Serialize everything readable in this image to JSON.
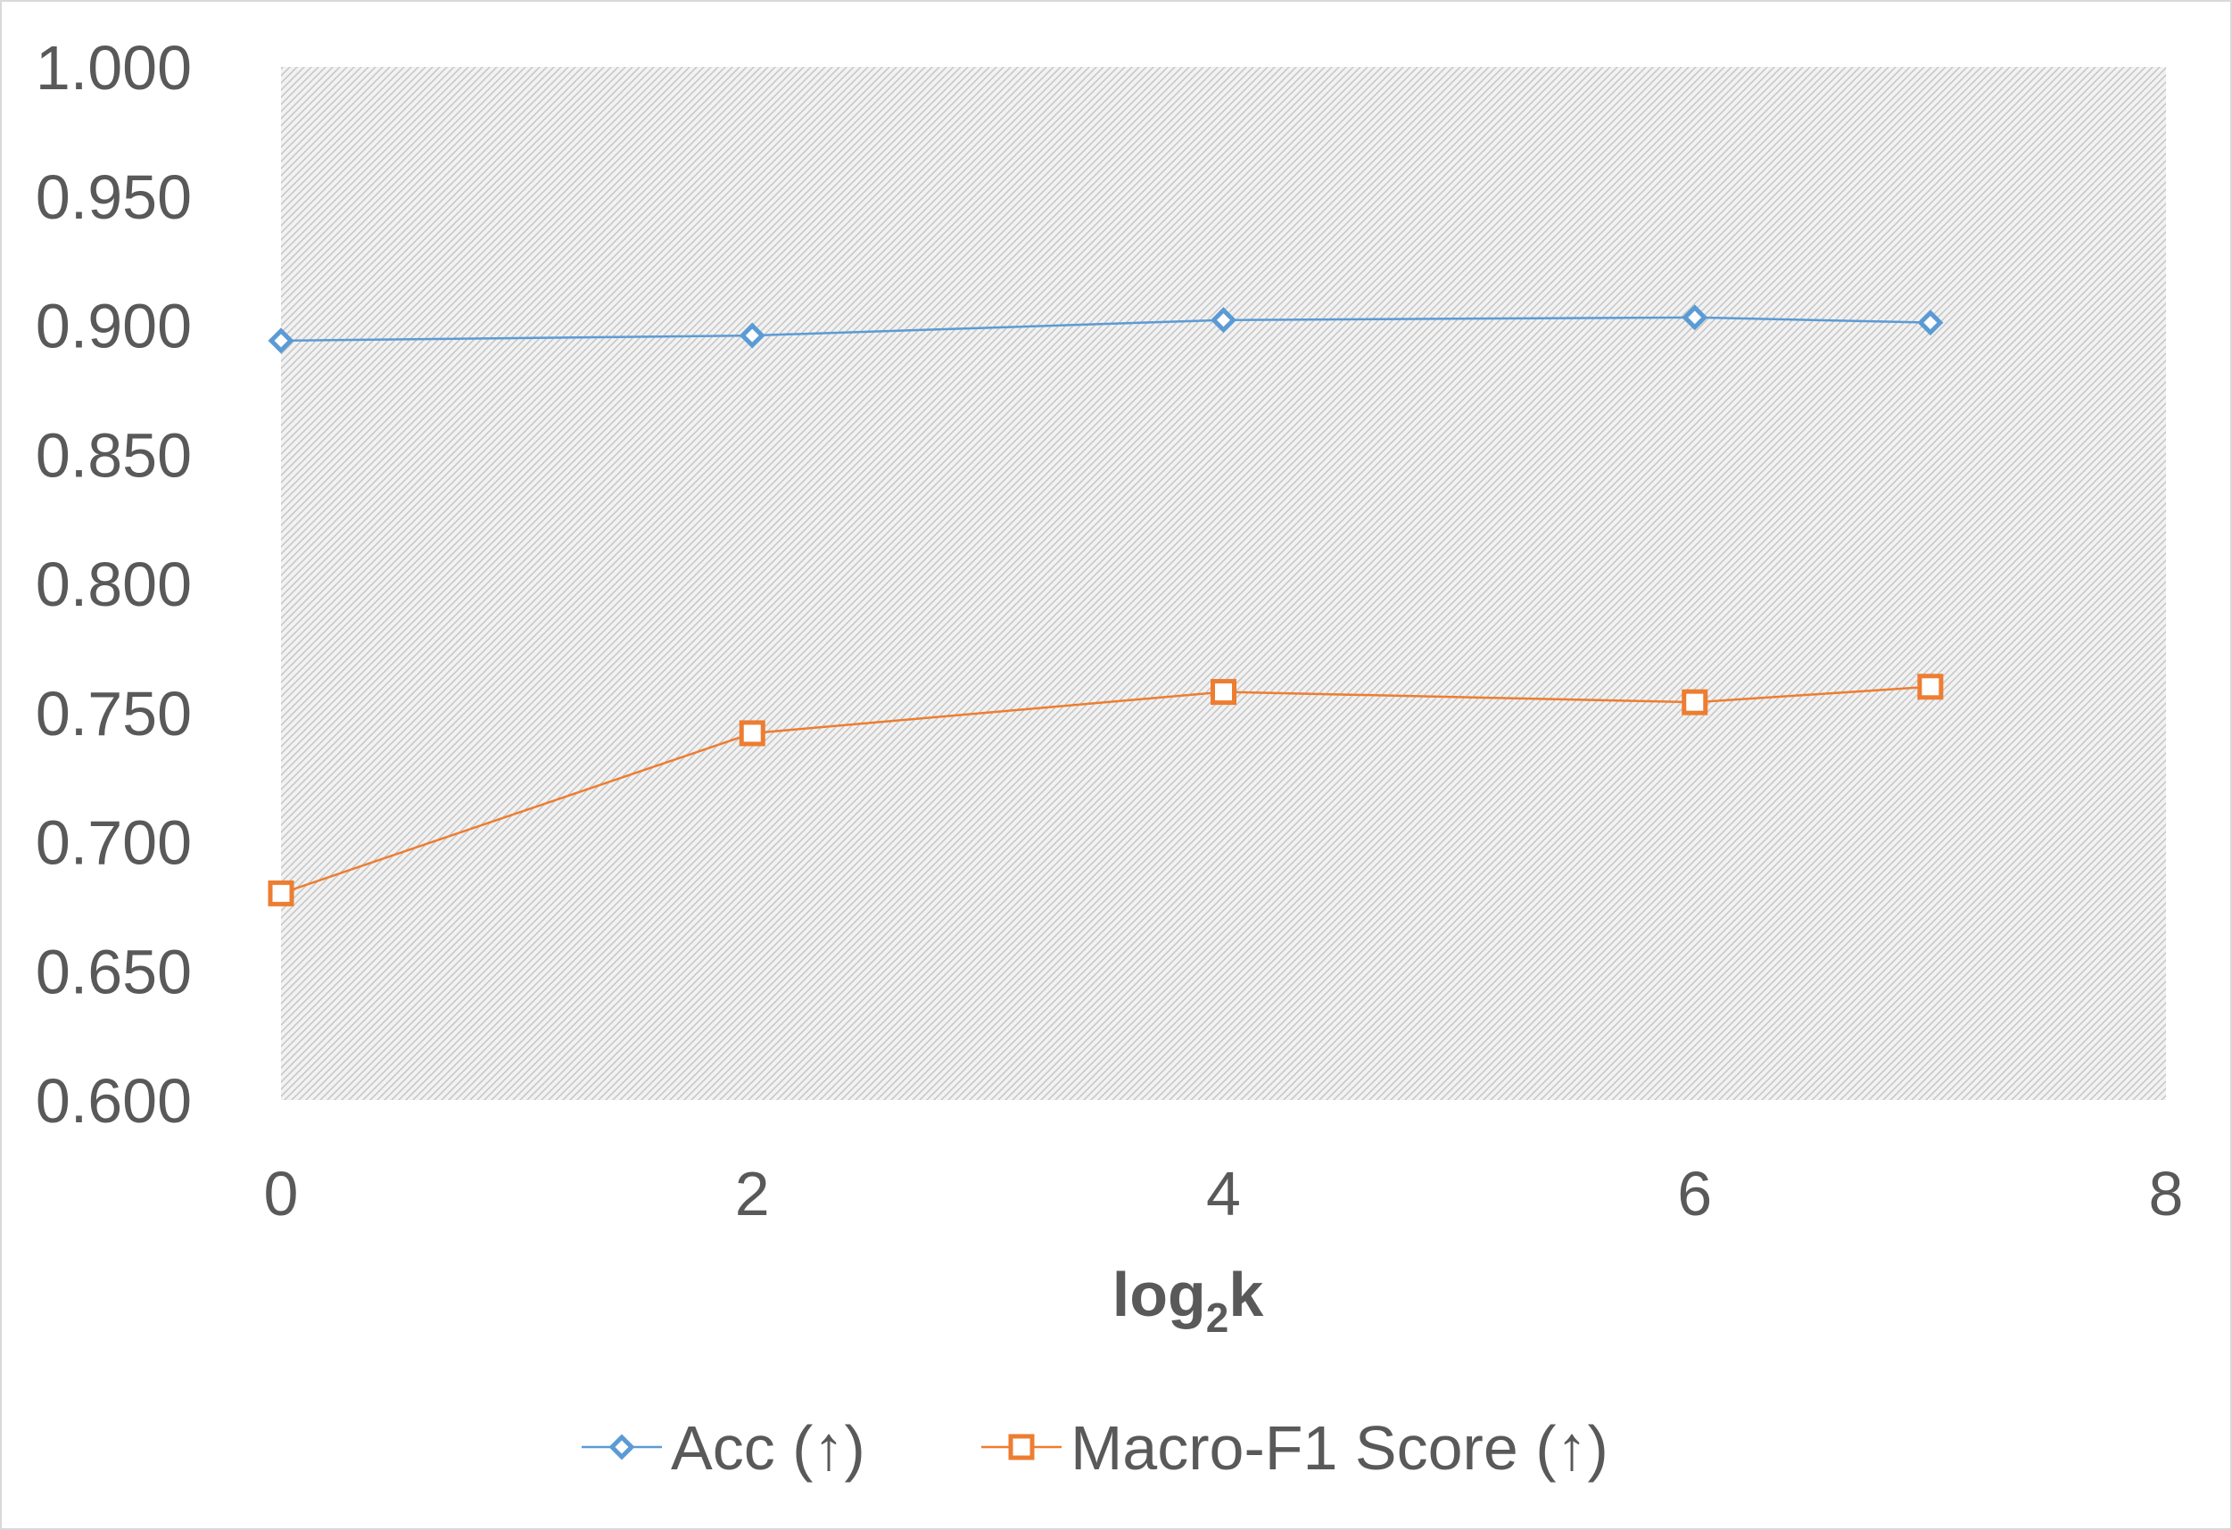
{
  "chart_data": {
    "type": "line",
    "xlabel": "log",
    "xlabel_sub": "2",
    "xlabel_suffix": "k",
    "xlim": [
      0,
      8
    ],
    "ylim": [
      0.6,
      1.0
    ],
    "x_ticks": [
      "0",
      "2",
      "4",
      "6",
      "8"
    ],
    "y_ticks": [
      "0.600",
      "0.650",
      "0.700",
      "0.750",
      "0.800",
      "0.850",
      "0.900",
      "0.950",
      "1.000"
    ],
    "grid": false,
    "plot_background": "hatched-gray",
    "legend_position": "bottom",
    "series": [
      {
        "name": "Acc (↑)",
        "color": "#5B9BD5",
        "marker": "diamond",
        "x": [
          0,
          2,
          4,
          6,
          7
        ],
        "values": [
          0.894,
          0.896,
          0.902,
          0.903,
          0.901
        ]
      },
      {
        "name": "Macro-F1 Score (↑)",
        "color": "#ED7D31",
        "marker": "square",
        "x": [
          0,
          2,
          4,
          6,
          7
        ],
        "values": [
          0.68,
          0.742,
          0.758,
          0.754,
          0.76
        ]
      }
    ]
  }
}
